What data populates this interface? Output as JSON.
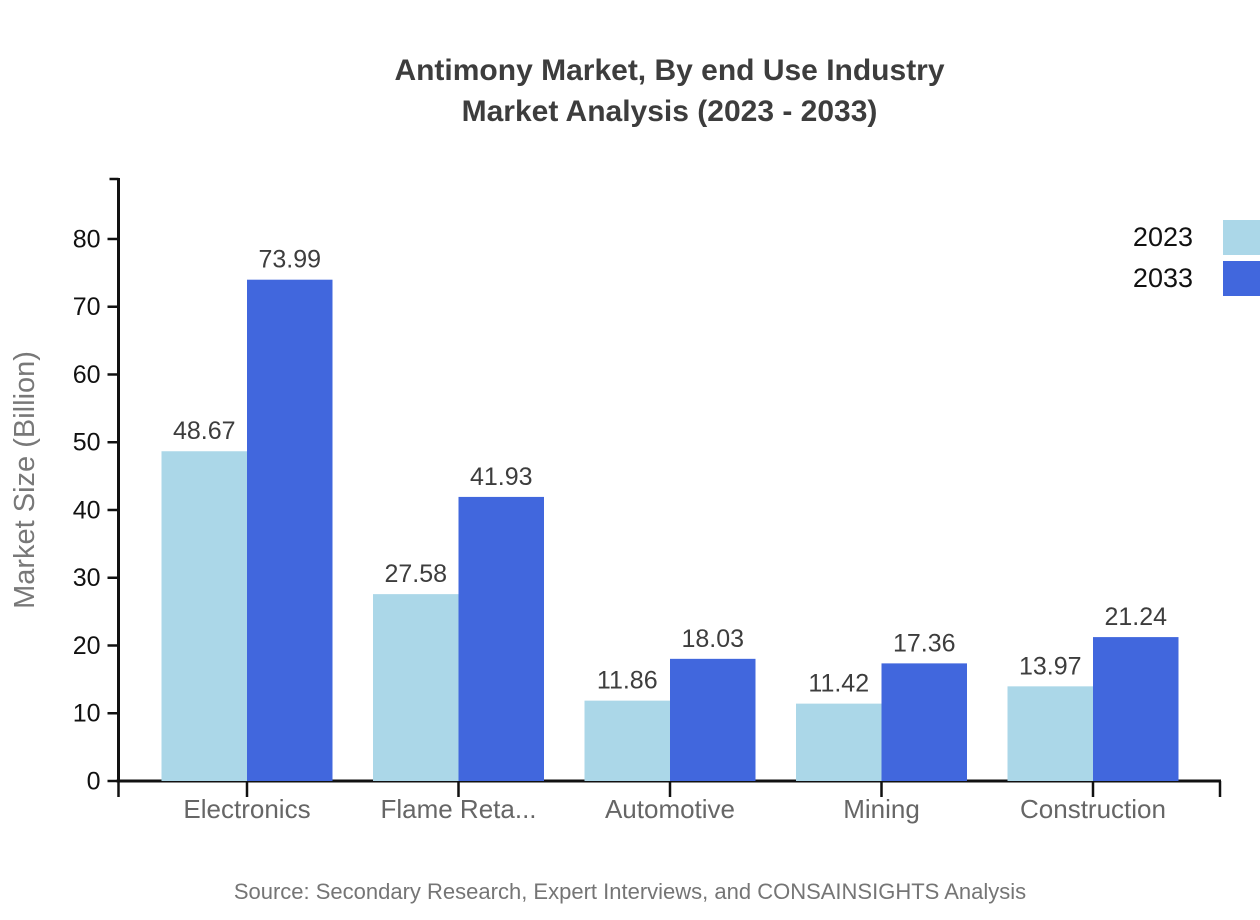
{
  "title": {
    "line1": "Antimony Market, By end Use Industry",
    "line2": "Market Analysis (2023 - 2033)"
  },
  "source": "Source: Secondary Research, Expert Interviews, and CONSAINSIGHTS Analysis",
  "chart_data": {
    "type": "bar",
    "title": "Antimony Market, By end Use Industry Market Analysis (2023 - 2033)",
    "categories": [
      "Electronics",
      "Flame Reta...",
      "Automotive",
      "Mining",
      "Construction"
    ],
    "series": [
      {
        "name": "2023",
        "color": "#abd7e8",
        "values": [
          48.67,
          27.58,
          11.86,
          11.42,
          13.97
        ]
      },
      {
        "name": "2033",
        "color": "#4167dd",
        "values": [
          73.99,
          41.93,
          18.03,
          17.36,
          21.24
        ]
      }
    ],
    "xlabel": "",
    "ylabel": "Market Size (Billion)",
    "ylim": [
      0,
      89
    ],
    "yticks": [
      0,
      10,
      20,
      30,
      40,
      50,
      60,
      70,
      80
    ],
    "grid": false,
    "bar_labels": true,
    "legend_position": "top-right",
    "axis_color": "#111111",
    "tick_label_color": "#111111",
    "category_label_color": "#666666",
    "value_label_color": "#3d3d3d",
    "ylabel_color": "#787878"
  }
}
